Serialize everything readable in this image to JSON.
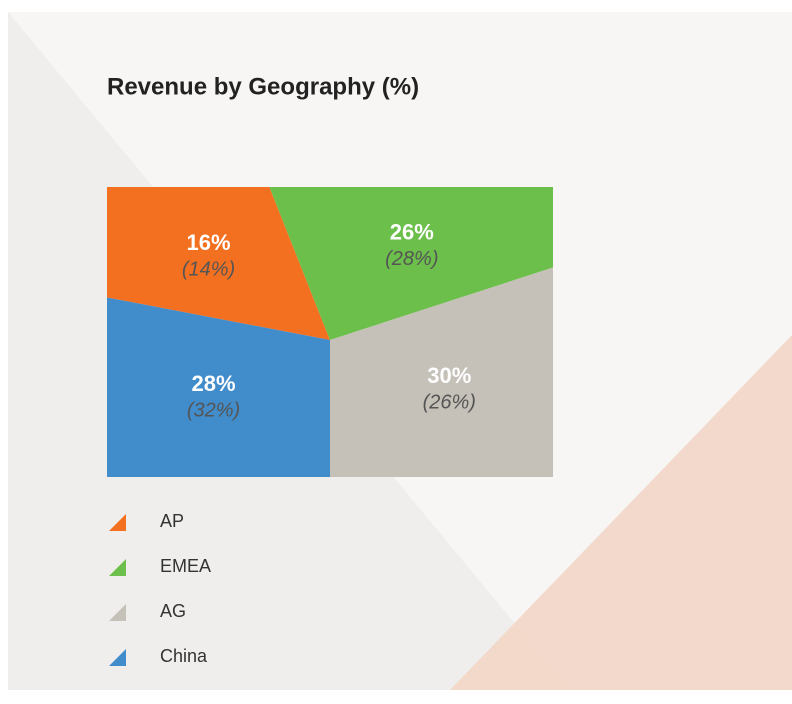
{
  "chart_data": {
    "type": "pie",
    "title": "Revenue by Geography (%)",
    "categories": [
      "AP",
      "EMEA",
      "AG",
      "China"
    ],
    "values": [
      16,
      26,
      30,
      28
    ],
    "value_labels": [
      "16%",
      "26%",
      "30%",
      "28%"
    ],
    "previous_values": [
      14,
      28,
      26,
      32
    ],
    "previous_value_labels": [
      "(14%)",
      "(28%)",
      "(26%)",
      "(32%)"
    ],
    "colors": [
      "#f37021",
      "#6cbf4b",
      "#c5c0b8",
      "#418ccb"
    ],
    "legend": "bottom"
  }
}
